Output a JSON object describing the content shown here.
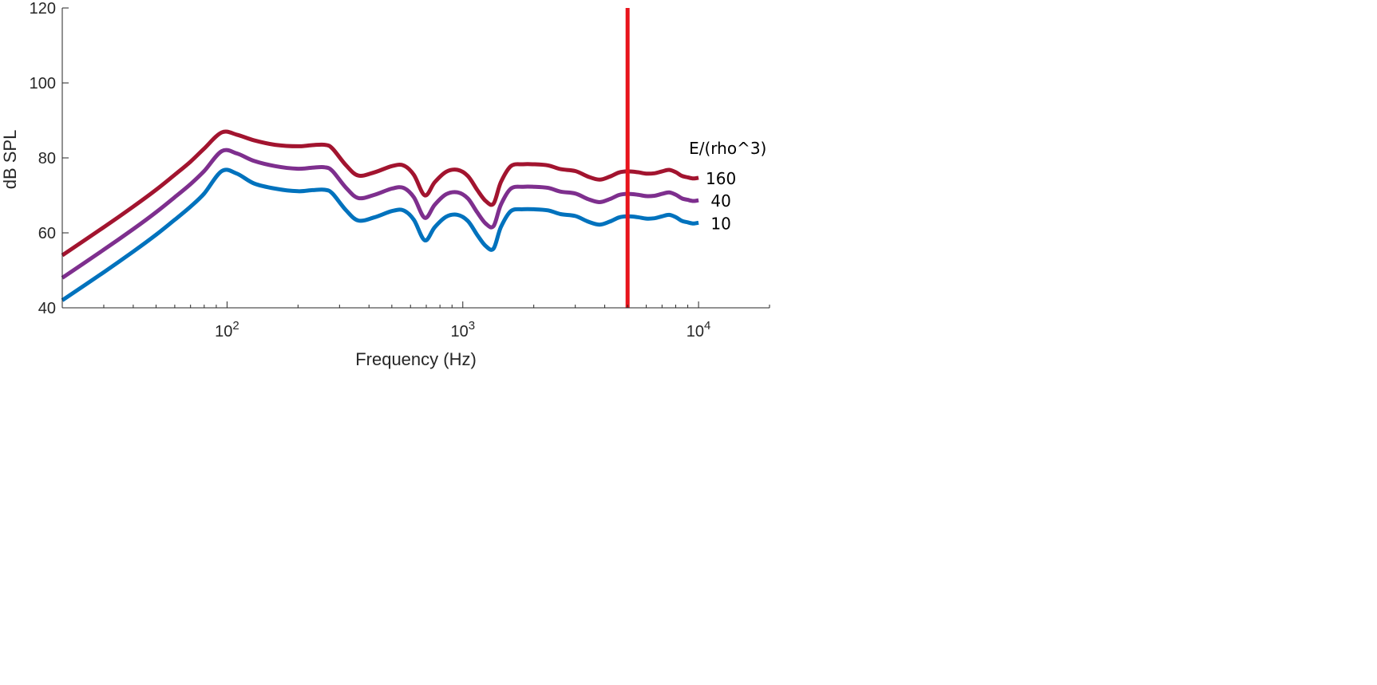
{
  "chart_data": {
    "type": "line",
    "xscale": "log",
    "xlim": [
      20,
      20000
    ],
    "ylim": [
      40,
      120
    ],
    "xlabel": "Frequency (Hz)",
    "ylabel": "dB SPL",
    "yticks": [
      40,
      60,
      80,
      100,
      120
    ],
    "xticks": [
      {
        "value": 100,
        "base": "10",
        "exp": "2"
      },
      {
        "value": 1000,
        "base": "10",
        "exp": "3"
      },
      {
        "value": 10000,
        "base": "10",
        "exp": "4"
      }
    ],
    "grid": false,
    "legend_title": "E/(rho^3)",
    "series": [
      {
        "name": "160",
        "color": "#A2142F",
        "x": [
          20,
          30,
          40,
          50,
          60,
          70,
          80,
          95,
          110,
          130,
          160,
          200,
          230,
          260,
          280,
          320,
          360,
          420,
          500,
          560,
          620,
          690,
          760,
          850,
          950,
          1050,
          1150,
          1250,
          1350,
          1450,
          1600,
          1800,
          2000,
          2300,
          2600,
          3000,
          3400,
          3800,
          4200,
          4600,
          5000,
          5500,
          6000,
          6500,
          7000,
          7500,
          8000,
          8500,
          9000,
          9500,
          10000
        ],
        "y": [
          54,
          61.5,
          67,
          71.5,
          75.5,
          79,
          82.5,
          86.8,
          86.2,
          84.7,
          83.5,
          83.1,
          83.4,
          83.5,
          82.5,
          78,
          75.3,
          76.1,
          77.8,
          78,
          75.5,
          70,
          73.5,
          76.3,
          76.8,
          75.2,
          71.5,
          68.5,
          67.8,
          73.5,
          77.8,
          78.3,
          78.3,
          78,
          77,
          76.5,
          75,
          74.2,
          75,
          76.1,
          76.4,
          76.2,
          75.8,
          75.9,
          76.4,
          76.8,
          76.2,
          75.2,
          74.8,
          74.5,
          74.7
        ]
      },
      {
        "name": "40",
        "color": "#7E2F8E",
        "x": [
          20,
          30,
          40,
          50,
          60,
          70,
          80,
          95,
          110,
          130,
          160,
          200,
          230,
          260,
          280,
          320,
          360,
          420,
          500,
          560,
          620,
          690,
          760,
          850,
          950,
          1050,
          1150,
          1250,
          1350,
          1450,
          1600,
          1800,
          2000,
          2300,
          2600,
          3000,
          3400,
          3800,
          4200,
          4600,
          5000,
          5500,
          6000,
          6500,
          7000,
          7500,
          8000,
          8500,
          9000,
          9500,
          10000
        ],
        "y": [
          48,
          55.5,
          61,
          65.5,
          69.5,
          73,
          76.5,
          81.8,
          81.2,
          79.2,
          77.8,
          77.1,
          77.4,
          77.5,
          76.5,
          72,
          69.3,
          70.1,
          71.8,
          72,
          69.5,
          64,
          67.5,
          70.3,
          70.8,
          69.2,
          65.5,
          62.5,
          61.8,
          67.5,
          71.8,
          72.3,
          72.3,
          72,
          71,
          70.5,
          69,
          68.2,
          69,
          70.1,
          70.4,
          70.2,
          69.8,
          69.9,
          70.4,
          70.8,
          70.2,
          69.2,
          68.8,
          68.5,
          68.7
        ]
      },
      {
        "name": "10",
        "color": "#0072BD",
        "x": [
          20,
          30,
          40,
          50,
          60,
          70,
          80,
          95,
          110,
          130,
          160,
          200,
          230,
          260,
          280,
          320,
          360,
          420,
          500,
          560,
          620,
          690,
          760,
          850,
          950,
          1050,
          1150,
          1250,
          1350,
          1450,
          1600,
          1800,
          2000,
          2300,
          2600,
          3000,
          3400,
          3800,
          4200,
          4600,
          5000,
          5500,
          6000,
          6500,
          7000,
          7500,
          8000,
          8500,
          9000,
          9500,
          10000
        ],
        "y": [
          42,
          49.5,
          55,
          59.5,
          63.5,
          67,
          70.5,
          76.5,
          75.8,
          73.2,
          71.8,
          71.1,
          71.4,
          71.5,
          70.5,
          66,
          63.3,
          64.1,
          65.8,
          66,
          63.5,
          58,
          61.5,
          64.3,
          64.8,
          63.2,
          59.5,
          56.5,
          55.8,
          61.5,
          65.8,
          66.3,
          66.3,
          66,
          65,
          64.5,
          63,
          62.2,
          63,
          64.1,
          64.4,
          64.2,
          63.8,
          63.9,
          64.4,
          64.8,
          64.2,
          63.2,
          62.8,
          62.5,
          62.7
        ]
      }
    ],
    "vertical_marker": {
      "x": 5000,
      "color": "#E8141C"
    }
  }
}
